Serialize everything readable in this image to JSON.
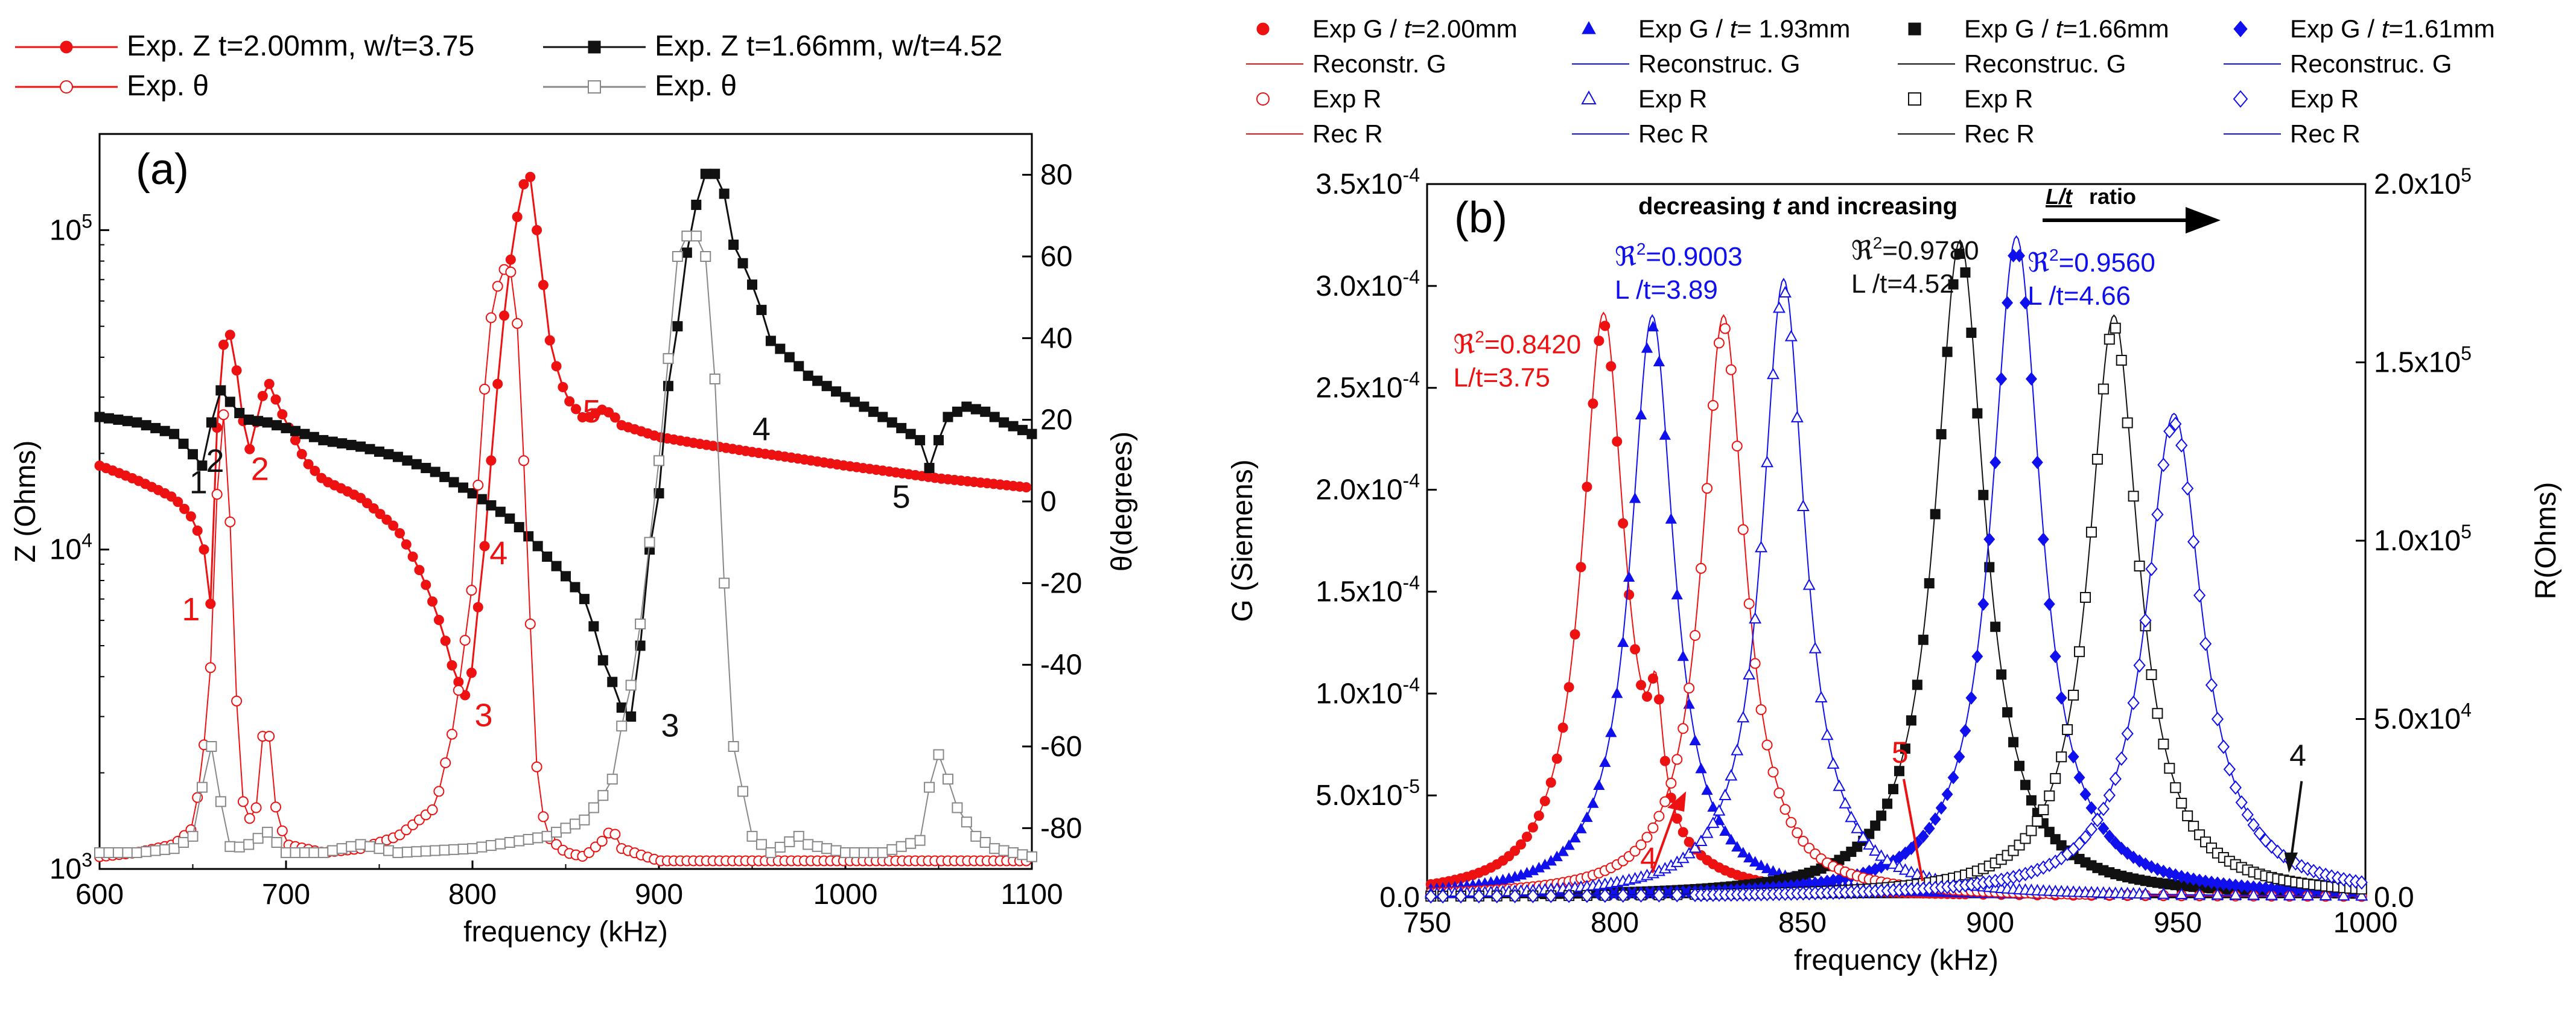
{
  "colors": {
    "red": "#ee1111",
    "black": "#111111",
    "blue": "#1010ee",
    "gray": "#888888"
  },
  "chart_data": [
    {
      "id": "a",
      "type": "line",
      "panel_label": "(a)",
      "xlabel": "frequency (kHz)",
      "ylabel": "Z (Ohms)",
      "y2label": "θ(degrees)",
      "xlim": [
        600,
        1100
      ],
      "ylim_log": [
        1000,
        200000
      ],
      "y2lim": [
        -90,
        90
      ],
      "x_ticks": [
        "600",
        "700",
        "800",
        "900",
        "1000",
        "1100"
      ],
      "y_ticks": [
        {
          "base": "10",
          "exp": "3"
        },
        {
          "base": "10",
          "exp": "4"
        },
        {
          "base": "10",
          "exp": "5"
        }
      ],
      "y2_ticks": [
        "-80",
        "-60",
        "-40",
        "-20",
        "0",
        "20",
        "40",
        "60",
        "80"
      ],
      "legend": [
        {
          "label": "Exp. Z t=2.00mm, w/t=3.75",
          "color": "#ee1111",
          "marker": "filled-circle"
        },
        {
          "label": "Exp. Z  t=1.66mm, w/t=4.52",
          "color": "#111111",
          "marker": "filled-square"
        },
        {
          "label": "Exp. θ",
          "color": "#ee1111",
          "marker": "open-circle"
        },
        {
          "label": "Exp. θ",
          "color": "#888888",
          "marker": "open-square"
        }
      ],
      "series": [
        {
          "name": "Exp. Z t=2.00mm, w/t=3.75",
          "axis": "left",
          "color": "#ee1111",
          "marker": "filled-circle",
          "x": [
            600,
            620,
            640,
            650,
            656,
            660,
            664,
            668,
            672,
            676,
            680,
            684,
            690,
            696,
            700,
            710,
            720,
            740,
            760,
            780,
            790,
            796,
            800,
            806,
            812,
            818,
            824,
            830,
            836,
            842,
            850,
            860,
            870,
            875,
            880,
            890,
            900,
            920,
            950,
            1000,
            1050,
            1100
          ],
          "y": [
            18300,
            16500,
            14500,
            12500,
            10000,
            6300,
            30000,
            52000,
            42000,
            27000,
            20000,
            25000,
            34000,
            28000,
            25000,
            19000,
            16500,
            14500,
            11500,
            6500,
            4100,
            3500,
            4200,
            9000,
            24000,
            60000,
            110000,
            160000,
            80000,
            42000,
            30000,
            25500,
            27500,
            26500,
            24500,
            23500,
            22500,
            21500,
            20200,
            18300,
            16700,
            15600
          ]
        },
        {
          "name": "Exp. Z  t=1.66mm, w/t=4.52",
          "axis": "left",
          "color": "#111111",
          "marker": "filled-square",
          "x": [
            600,
            620,
            640,
            656,
            660,
            664,
            668,
            674,
            680,
            690,
            700,
            720,
            740,
            760,
            780,
            800,
            820,
            840,
            860,
            870,
            880,
            885,
            890,
            900,
            910,
            920,
            925,
            930,
            935,
            940,
            960,
            980,
            1000,
            1040,
            1045,
            1055,
            1065,
            1075,
            1085,
            1100
          ],
          "y": [
            26000,
            25000,
            23000,
            18000,
            25000,
            32000,
            30000,
            27000,
            25500,
            25000,
            24000,
            22000,
            21000,
            19500,
            17500,
            15000,
            12500,
            9500,
            7000,
            4500,
            3200,
            3000,
            5000,
            15000,
            50000,
            120000,
            150000,
            150000,
            130000,
            90000,
            45000,
            35000,
            30000,
            22000,
            18000,
            26000,
            28000,
            27000,
            25000,
            23000
          ]
        },
        {
          "name": "Exp. θ (2.00mm)",
          "axis": "right",
          "color": "#ee1111",
          "marker": "open-circle",
          "x": [
            600,
            620,
            640,
            650,
            655,
            660,
            664,
            668,
            672,
            676,
            680,
            684,
            688,
            690,
            694,
            700,
            720,
            740,
            760,
            780,
            790,
            800,
            805,
            810,
            815,
            820,
            825,
            830,
            835,
            840,
            850,
            860,
            870,
            875,
            880,
            900,
            950,
            1000,
            1050,
            1100
          ],
          "y": [
            -87,
            -86,
            -84,
            -80,
            -65,
            -38,
            15,
            25,
            -35,
            -72,
            -78,
            -75,
            -55,
            -52,
            -74,
            -84,
            -86,
            -85,
            -82,
            -75,
            -55,
            -20,
            20,
            45,
            56,
            58,
            40,
            -20,
            -70,
            -82,
            -86,
            -87,
            -83,
            -80,
            -85,
            -88,
            -88,
            -88,
            -88,
            -88
          ]
        },
        {
          "name": "Exp. θ (1.66mm)",
          "axis": "right",
          "color": "#888888",
          "marker": "open-square",
          "x": [
            600,
            620,
            640,
            650,
            655,
            660,
            664,
            668,
            672,
            680,
            690,
            700,
            720,
            740,
            760,
            800,
            840,
            860,
            870,
            875,
            880,
            885,
            890,
            900,
            910,
            915,
            920,
            925,
            930,
            935,
            940,
            950,
            960,
            975,
            980,
            1000,
            1020,
            1040,
            1045,
            1050,
            1055,
            1060,
            1070,
            1080,
            1100
          ],
          "y": [
            -86,
            -86,
            -85,
            -82,
            -70,
            -60,
            -70,
            -84,
            -85,
            -84,
            -81,
            -86,
            -86,
            -84,
            -86,
            -85,
            -82,
            -78,
            -72,
            -68,
            -55,
            -45,
            -30,
            10,
            60,
            65,
            65,
            60,
            30,
            -20,
            -60,
            -82,
            -86,
            -82,
            -84,
            -86,
            -86,
            -83,
            -70,
            -62,
            -68,
            -75,
            -82,
            -85,
            -87
          ]
        }
      ],
      "annotations": [
        {
          "text": "1",
          "color": "#ee1111",
          "x": 649,
          "y": 6000
        },
        {
          "text": "1",
          "color": "#111111",
          "x": 653,
          "y": 15000
        },
        {
          "text": "2",
          "color": "#111111",
          "x": 662,
          "y": 17500
        },
        {
          "text": "2",
          "color": "#ee1111",
          "x": 686,
          "y": 16500
        },
        {
          "text": "3",
          "color": "#ee1111",
          "x": 806,
          "y": 2800
        },
        {
          "text": "4",
          "color": "#ee1111",
          "x": 814,
          "y": 9000
        },
        {
          "text": "5",
          "color": "#ee1111",
          "x": 864,
          "y": 25000
        },
        {
          "text": "3",
          "color": "#111111",
          "x": 906,
          "y": 2600
        },
        {
          "text": "4",
          "color": "#111111",
          "x": 955,
          "y": 22000
        },
        {
          "text": "5",
          "color": "#111111",
          "x": 1030,
          "y": 13500
        }
      ]
    },
    {
      "id": "b",
      "type": "scatter",
      "panel_label": "(b)",
      "xlabel": "frequency (kHz)",
      "ylabel": "G (Siemens)",
      "y2label": "R(Ohms)",
      "xlim": [
        750,
        1000
      ],
      "ylim": [
        0,
        0.00035
      ],
      "y2lim": [
        0,
        200000
      ],
      "x_ticks": [
        "750",
        "800",
        "850",
        "900",
        "950",
        "1000"
      ],
      "y_ticks": [
        {
          "m": "0.0",
          "e": ""
        },
        {
          "m": "5.0x10",
          "e": "-5"
        },
        {
          "m": "1.0x10",
          "e": "-4"
        },
        {
          "m": "1.5x10",
          "e": "-4"
        },
        {
          "m": "2.0x10",
          "e": "-4"
        },
        {
          "m": "2.5x10",
          "e": "-4"
        },
        {
          "m": "3.0x10",
          "e": "-4"
        },
        {
          "m": "3.5x10",
          "e": "-4"
        }
      ],
      "y2_ticks": [
        {
          "m": "0.0",
          "e": ""
        },
        {
          "m": "5.0x10",
          "e": "4"
        },
        {
          "m": "1.0x10",
          "e": "5"
        },
        {
          "m": "1.5x10",
          "e": "5"
        },
        {
          "m": "2.0x10",
          "e": "5"
        }
      ],
      "arrow_caption": {
        "prefix": "decreasing ",
        "t": "t",
        "middle": " and increasing ",
        "lt": "L/t",
        "suffix": " ratio"
      },
      "legend": [
        {
          "label": "Exp G / ",
          "italic": "t",
          "rest": "=2.00mm",
          "color": "#ee1111",
          "marker": "filled-circle"
        },
        {
          "label": "Exp G / ",
          "italic": "t",
          "rest": "= 1.93mm",
          "color": "#1010ee",
          "marker": "filled-triangle"
        },
        {
          "label": "Exp G / ",
          "italic": "t",
          "rest": "=1.66mm",
          "color": "#111111",
          "marker": "filled-square"
        },
        {
          "label": "Exp G / ",
          "italic": "t",
          "rest": "=1.61mm",
          "color": "#1010ee",
          "marker": "filled-diamond"
        },
        {
          "label": "Reconstr. G",
          "color": "#ee1111",
          "marker": "line"
        },
        {
          "label": "Reconstruc. G",
          "color": "#1010ee",
          "marker": "line"
        },
        {
          "label": "Reconstruc. G",
          "color": "#111111",
          "marker": "line"
        },
        {
          "label": "Reconstruc. G",
          "color": "#1010ee",
          "marker": "line"
        },
        {
          "label": "Exp R",
          "color": "#ee1111",
          "marker": "open-circle"
        },
        {
          "label": "Exp R",
          "color": "#1010ee",
          "marker": "open-triangle"
        },
        {
          "label": "Exp R",
          "color": "#111111",
          "marker": "open-square"
        },
        {
          "label": "Exp R",
          "color": "#1010ee",
          "marker": "open-diamond"
        },
        {
          "label": "Rec R",
          "color": "#ee1111",
          "marker": "line"
        },
        {
          "label": "Rec R",
          "color": "#1010ee",
          "marker": "line"
        },
        {
          "label": "Rec R",
          "color": "#111111",
          "marker": "line"
        },
        {
          "label": "Rec R",
          "color": "#1010ee",
          "marker": "line"
        }
      ],
      "series": [
        {
          "name": "Exp G / t=2.00mm",
          "color": "#ee1111",
          "marker": "filled-circle",
          "axis": "left",
          "peak_x": 797,
          "peak": 0.00028,
          "hw": 7,
          "spur_x": 811,
          "spur": 5.2e-05
        },
        {
          "name": "Exp G / t= 1.93mm",
          "color": "#1010ee",
          "marker": "filled-triangle",
          "axis": "left",
          "peak_x": 810,
          "peak": 0.00028,
          "hw": 7
        },
        {
          "name": "Exp G / t=1.66mm",
          "color": "#111111",
          "marker": "filled-square",
          "axis": "left",
          "peak_x": 892,
          "peak": 0.000316,
          "hw": 8
        },
        {
          "name": "Exp G / t=1.61mm",
          "color": "#1010ee",
          "marker": "filled-diamond",
          "axis": "left",
          "peak_x": 907,
          "peak": 0.000318,
          "hw": 8
        },
        {
          "name": "Exp R (2.00mm)",
          "color": "#ee1111",
          "marker": "open-circle",
          "axis": "right",
          "peak_x": 829,
          "peak": 160000,
          "hw": 7
        },
        {
          "name": "Exp R (1.93mm)",
          "color": "#1010ee",
          "marker": "open-triangle",
          "axis": "right",
          "peak_x": 845,
          "peak": 170000,
          "hw": 7
        },
        {
          "name": "Exp R (1.66mm)",
          "color": "#111111",
          "marker": "open-square",
          "axis": "right",
          "peak_x": 933,
          "peak": 160000,
          "hw": 8
        },
        {
          "name": "Exp R (1.61mm)",
          "color": "#1010ee",
          "marker": "open-diamond",
          "axis": "right",
          "peak_x": 949,
          "peak": 133000,
          "hw": 9
        }
      ],
      "annotations": [
        {
          "text": "ℜ",
          "sup": "2",
          "rest": "=0.8420",
          "line2": "L/t=3.75",
          "color": "#ee1111",
          "x": 757,
          "y": 0.000267
        },
        {
          "text": "ℜ",
          "sup": "2",
          "rest": "=0.9003",
          "line2": "L /t=3.89",
          "color": "#1010ee",
          "x": 800,
          "y": 0.00031
        },
        {
          "text": "ℜ",
          "sup": "2",
          "rest": "=0.9780",
          "line2": "L /t=4.52",
          "color": "#111111",
          "x": 863,
          "y": 0.000313
        },
        {
          "text": "ℜ",
          "sup": "2",
          "rest": "=0.9560",
          "line2": "L /t=4.66",
          "color": "#1010ee",
          "x": 910,
          "y": 0.000307
        },
        {
          "text": "4",
          "color": "#ee1111",
          "x": 809,
          "y": 1.4e-05
        },
        {
          "text": "5",
          "color": "#ee1111",
          "x": 876,
          "y": 6.6e-05
        },
        {
          "text": "4",
          "color": "#111111",
          "x": 982,
          "y": 6.45e-05
        }
      ]
    }
  ]
}
